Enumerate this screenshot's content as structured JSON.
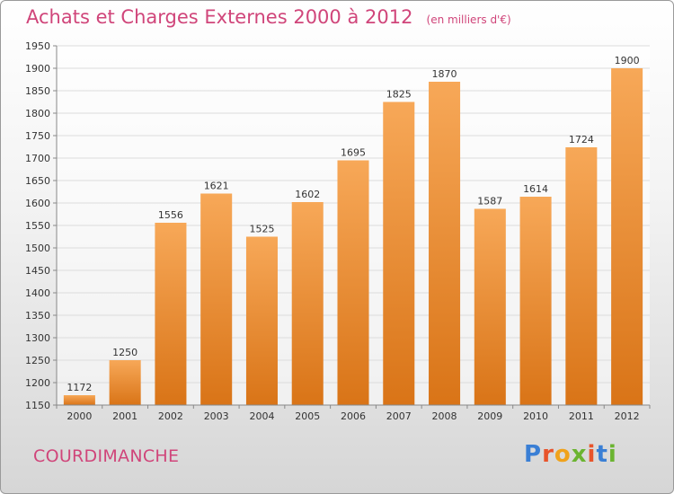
{
  "header": {
    "title": "Achats et Charges Externes 2000 à 2012",
    "subtitle": "(en milliers d'€)"
  },
  "footer": {
    "commune": "COURDIMANCHE",
    "logo_letters": [
      "P",
      "r",
      "o",
      "x",
      "i",
      "t",
      "i"
    ],
    "logo_colors": [
      "#3a7fd5",
      "#e8542b",
      "#f0a21b",
      "#6bb431",
      "#e8542b",
      "#3a7fd5",
      "#6bb431"
    ]
  },
  "chart_data": {
    "type": "bar",
    "categories": [
      "2000",
      "2001",
      "2002",
      "2003",
      "2004",
      "2005",
      "2006",
      "2007",
      "2008",
      "2009",
      "2010",
      "2011",
      "2012"
    ],
    "values": [
      1172,
      1250,
      1556,
      1621,
      1525,
      1602,
      1695,
      1825,
      1870,
      1587,
      1614,
      1724,
      1900
    ],
    "ylim": [
      1150,
      1950
    ],
    "yticks": [
      1150,
      1200,
      1250,
      1300,
      1350,
      1400,
      1450,
      1500,
      1550,
      1600,
      1650,
      1700,
      1750,
      1800,
      1850,
      1900,
      1950
    ],
    "grid": true,
    "bar_color_top": "#f7a858",
    "bar_color_bottom": "#d97417"
  }
}
